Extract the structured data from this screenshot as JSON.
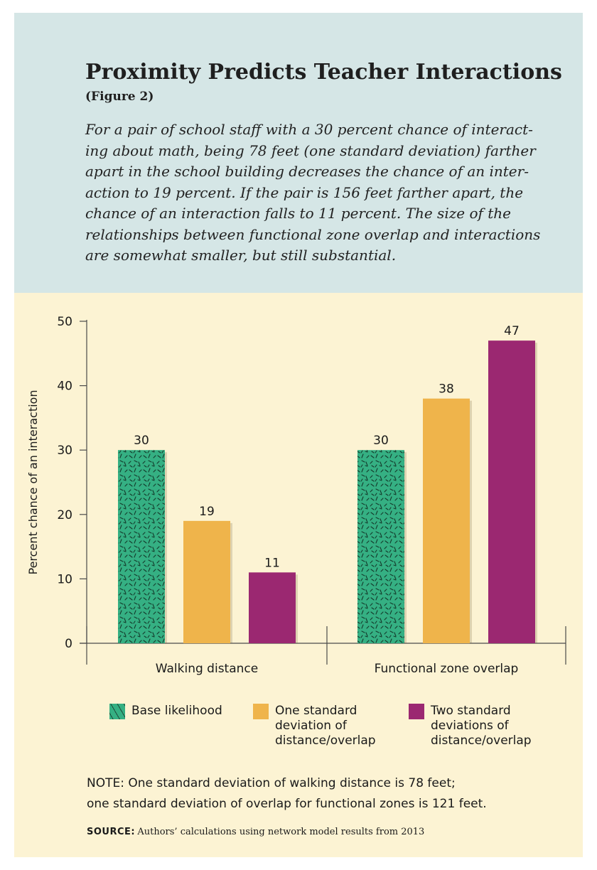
{
  "header": {
    "title": "Proximity Predicts Teacher Interactions",
    "subtitle": "(Figure 2)",
    "description_lines": [
      "For a pair of school staff with a 30 percent chance of interact-",
      "ing about math, being 78 feet (one standard deviation) farther",
      "apart in the school building decreases the chance of an inter-",
      "action to 19 percent. If the pair is 156 feet farther apart, the",
      "chance of an interaction falls to 11 percent. The size of the",
      "relationships between functional zone overlap and interactions",
      "are somewhat smaller, but still substantial."
    ]
  },
  "colors": {
    "header_bg": "#d5e6e6",
    "body_bg": "#fcf3d3",
    "base": "#35b083",
    "one_sd": "#efb44b",
    "two_sd": "#9b2871"
  },
  "chart_data": {
    "type": "bar",
    "categories": [
      "Walking distance",
      "Functional zone overlap"
    ],
    "series": [
      {
        "name": "Base likelihood",
        "values": [
          30,
          30
        ],
        "color": "#35b083",
        "pattern": "dashes"
      },
      {
        "name": "One standard deviation of distance/overlap",
        "values": [
          19,
          38
        ],
        "color": "#efb44b"
      },
      {
        "name": "Two standard deviations of distance/overlap",
        "values": [
          11,
          47
        ],
        "color": "#9b2871"
      }
    ],
    "ylabel": "Percent chance of an interaction",
    "ylim": [
      0,
      50
    ],
    "yticks": [
      0,
      10,
      20,
      30,
      40,
      50
    ],
    "grid": false,
    "legend_position": "bottom",
    "data_labels": true
  },
  "legend": [
    {
      "lines": [
        "Base likelihood"
      ]
    },
    {
      "lines": [
        "One standard",
        "deviation of",
        "distance/overlap"
      ]
    },
    {
      "lines": [
        "Two standard",
        "deviations of",
        "distance/overlap"
      ]
    }
  ],
  "note_lines": [
    "NOTE: One standard deviation of walking distance is 78 feet;",
    "one standard deviation of overlap for functional zones is 121 feet."
  ],
  "source": {
    "label": "SOURCE:",
    "text": "Authors’ calculations using network model results from 2013"
  }
}
